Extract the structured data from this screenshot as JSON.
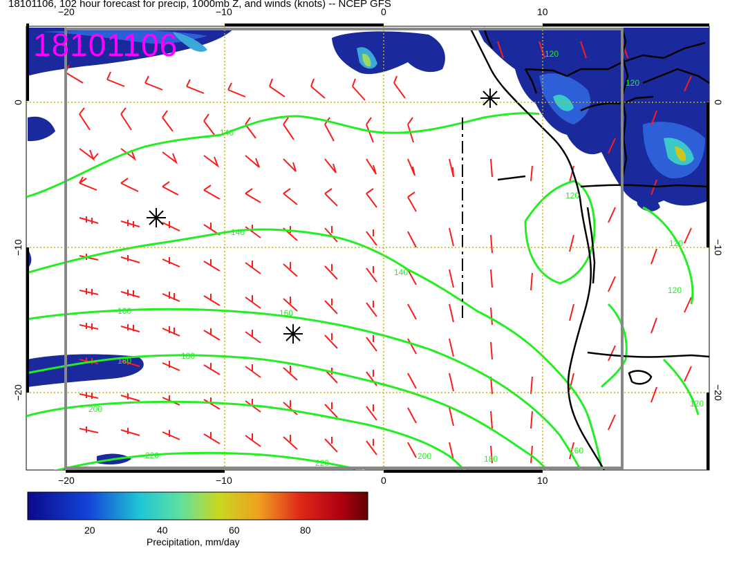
{
  "title": "18101106, 102 hour forecast for precip, 1000mb Z, and winds (knots) -- NCEP GFS",
  "date_stamp": "18101106",
  "lon_ticks_top": [
    "−20",
    "−10",
    "0",
    "10"
  ],
  "lon_ticks_bottom": [
    "−20",
    "−10",
    "0",
    "10"
  ],
  "lat_ticks_left": [
    "0",
    "−10",
    "−20"
  ],
  "lat_ticks_right": [
    "0",
    "−10",
    "−20"
  ],
  "contour_labels": [
    "140",
    "140",
    "140",
    "160",
    "160",
    "180",
    "180",
    "200",
    "200",
    "220",
    "220",
    "120",
    "120",
    "120",
    "120",
    "120",
    "160",
    "120",
    "180"
  ],
  "colorbar": {
    "ticks": [
      "20",
      "40",
      "60",
      "80"
    ],
    "label": "Precipitation, mm/day"
  },
  "colors": {
    "barb": "#ff1a1a",
    "contour": "#22ee22",
    "coast": "#000000",
    "stamp": "#ff00ff",
    "precip_low": "#1a2a9c",
    "precip_high": "#8b0000"
  },
  "marker_icons": [
    "asterisk-marker",
    "asterisk-marker",
    "asterisk-marker"
  ]
}
